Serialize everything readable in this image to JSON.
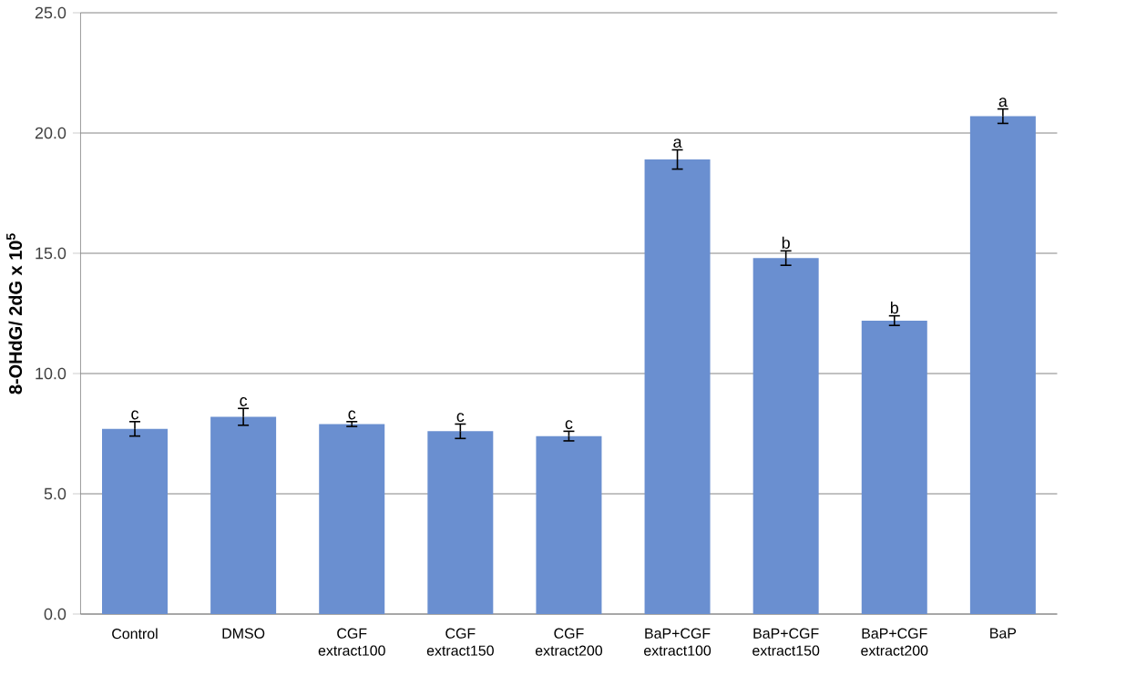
{
  "chart_data": {
    "type": "bar",
    "ylabel": "8-OHdG/ 2dG x 10$^{5}$",
    "categories": [
      "Control",
      "DMSO",
      "CGF extract100",
      "CGF extract150",
      "CGF extract200",
      "BaP+CGF extract100",
      "BaP+CGF extract150",
      "BaP+CGF extract200",
      "BaP"
    ],
    "values": [
      7.7,
      8.2,
      7.9,
      7.6,
      7.4,
      18.9,
      14.8,
      12.2,
      20.7
    ],
    "errors": [
      0.3,
      0.35,
      0.1,
      0.3,
      0.2,
      0.4,
      0.3,
      0.2,
      0.3
    ],
    "color": "#6a8fd0",
    "ylim": [
      0,
      25
    ],
    "yticks": [
      {
        "value": 0,
        "label": "0.0"
      },
      {
        "value": 5,
        "label": "5.0"
      },
      {
        "value": 10,
        "label": "10.0"
      },
      {
        "value": 15,
        "label": "15.0"
      },
      {
        "value": 20,
        "label": "20.0"
      },
      {
        "value": 25,
        "label": "25.0"
      }
    ],
    "grid": "y",
    "annotations": [
      {
        "text": "c",
        "x": "Control",
        "y": 8.0
      },
      {
        "text": "c",
        "x": "DMSO",
        "y": 8.55
      },
      {
        "text": "c",
        "x": "CGF extract100",
        "y": 8.0
      },
      {
        "text": "c",
        "x": "CGF extract150",
        "y": 7.9
      },
      {
        "text": "c",
        "x": "CGF extract200",
        "y": 7.6
      },
      {
        "text": "a",
        "x": "BaP+CGF extract100",
        "y": 19.3
      },
      {
        "text": "b",
        "x": "BaP+CGF extract150",
        "y": 15.1
      },
      {
        "text": "b",
        "x": "BaP+CGF extract200",
        "y": 12.4
      },
      {
        "text": "a",
        "x": "BaP",
        "y": 21.0
      }
    ]
  }
}
